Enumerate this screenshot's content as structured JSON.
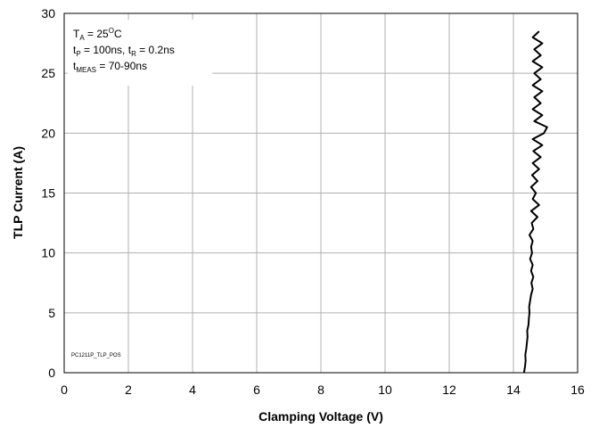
{
  "chart_data": {
    "type": "line",
    "xlabel": "Clamping Voltage (V)",
    "ylabel": "TLP Current (A)",
    "note": "PC1211P_TLP_POS",
    "annotations": [
      [
        {
          "text": "T"
        },
        {
          "text": "A",
          "style": "sub"
        },
        {
          "text": " = 25"
        },
        {
          "text": "O",
          "style": "sup"
        },
        {
          "text": "C"
        }
      ],
      [
        {
          "text": "t"
        },
        {
          "text": "P",
          "style": "sub"
        },
        {
          "text": " = 100ns, t"
        },
        {
          "text": "R",
          "style": "sub"
        },
        {
          "text": " = 0.2ns"
        }
      ],
      [
        {
          "text": "t"
        },
        {
          "text": "MEAS",
          "style": "sub"
        },
        {
          "text": " = 70-90ns"
        }
      ]
    ],
    "x": [
      14.33,
      14.36,
      14.38,
      14.37,
      14.4,
      14.42,
      14.44,
      14.43,
      14.47,
      14.48,
      14.5,
      14.49,
      14.52,
      14.55,
      14.6,
      14.56,
      14.62,
      14.55,
      14.6,
      14.52,
      14.58,
      14.55,
      14.6,
      14.5,
      14.62,
      14.57,
      14.75,
      14.55,
      14.8,
      14.6,
      14.7,
      14.55,
      14.75,
      14.58,
      14.8,
      14.6,
      14.85,
      14.62,
      14.9,
      14.6,
      14.95,
      15.05,
      14.65,
      14.9,
      14.6,
      14.85,
      14.65,
      14.9,
      14.6,
      14.85,
      14.65,
      14.9,
      14.6,
      14.85,
      14.65,
      14.9,
      14.6,
      14.8
    ],
    "values": [
      0,
      0.5,
      1,
      1.5,
      2,
      2.5,
      3,
      3.5,
      4,
      4.5,
      5,
      5.5,
      6,
      6.5,
      7,
      7.5,
      8,
      8.5,
      9,
      9.5,
      10,
      10.5,
      11,
      11.5,
      12,
      12.5,
      13,
      13.5,
      14,
      14.5,
      15,
      15.5,
      16,
      16.5,
      17,
      17.5,
      18,
      18.5,
      19,
      19.5,
      20,
      20.5,
      21,
      21.5,
      22,
      22.5,
      23,
      23.5,
      24,
      24.5,
      25,
      25.5,
      26,
      26.5,
      27,
      27.5,
      28,
      28.5
    ],
    "color": "#000000",
    "xlim": [
      0,
      16
    ],
    "xticks": [
      0,
      2,
      4,
      6,
      8,
      10,
      12,
      14,
      16
    ],
    "ylim": [
      0,
      30
    ],
    "yticks": [
      0,
      5,
      10,
      15,
      20,
      25,
      30
    ],
    "grid": true
  }
}
